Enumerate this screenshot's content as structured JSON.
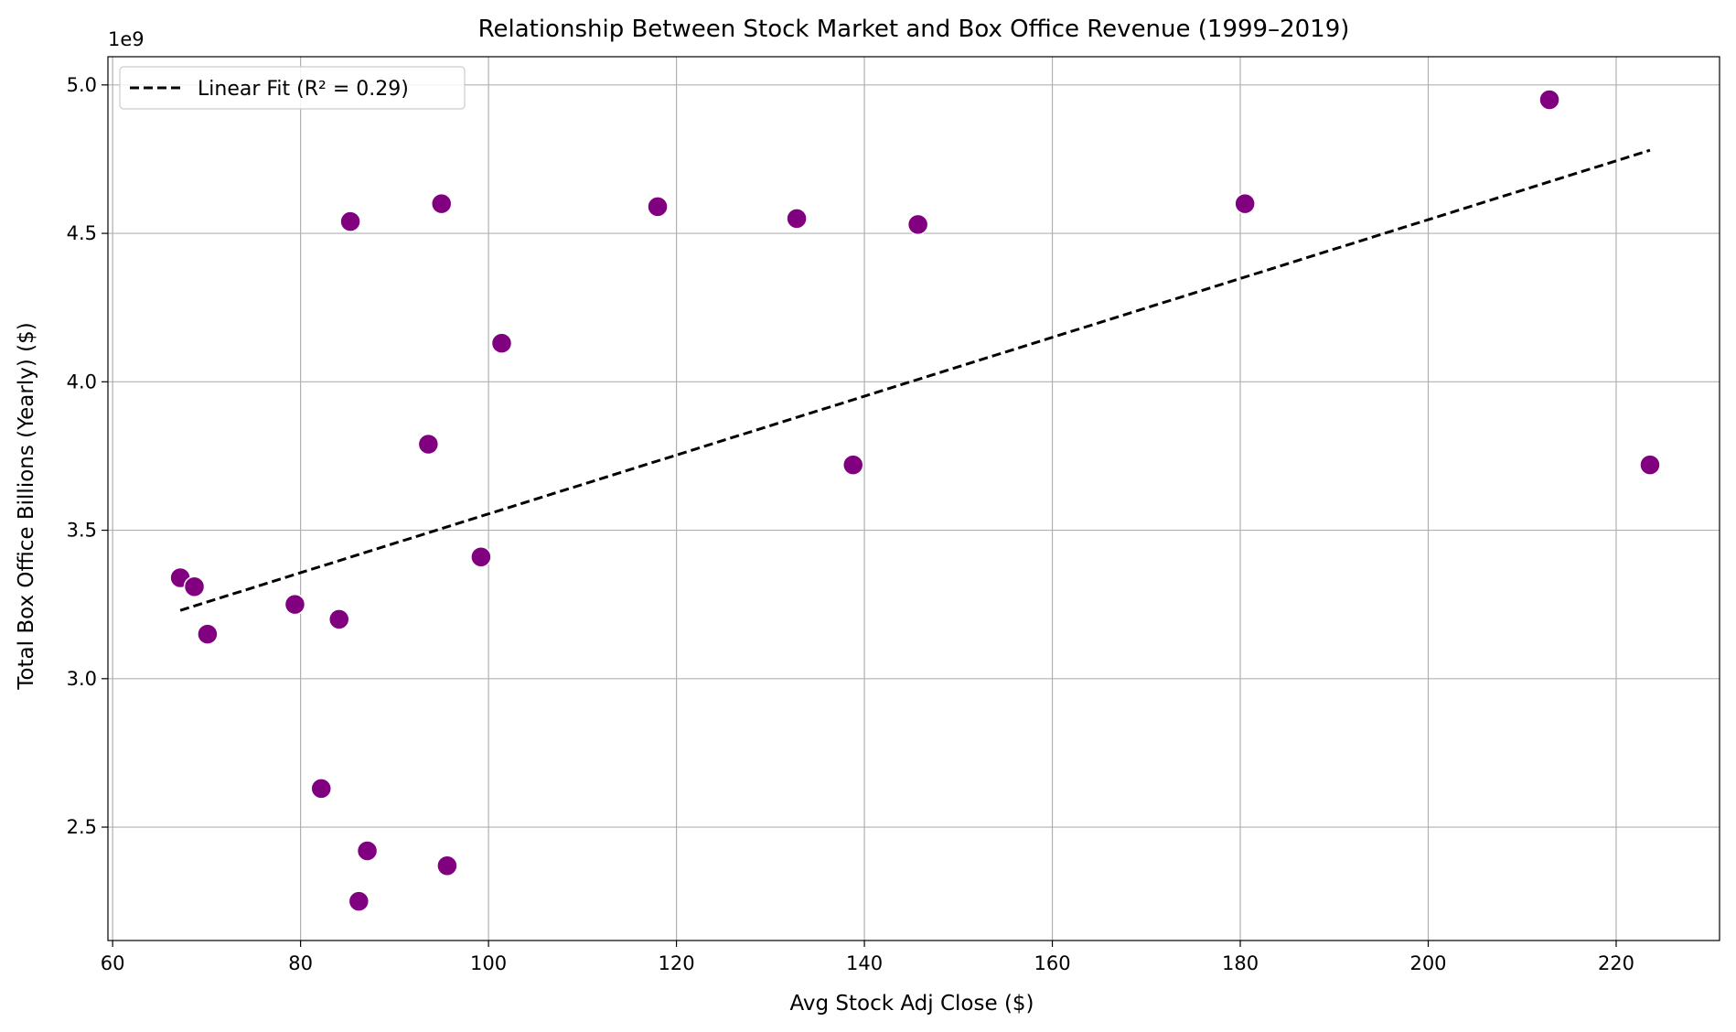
{
  "chart_data": {
    "type": "scatter",
    "title": "Relationship Between Stock Market and Box Office Revenue (1999–2019)",
    "xlabel": "Avg Stock Adj Close ($)",
    "ylabel": "Total Box Office  Billions (Yearly) ($)",
    "y_offset_label": "1e9",
    "xlim": [
      59.5,
      231.0
    ],
    "ylim": [
      2.118,
      5.095
    ],
    "x_ticks": [
      60,
      80,
      100,
      120,
      140,
      160,
      180,
      200,
      220
    ],
    "x_tick_labels": [
      "60",
      "80",
      "100",
      "120",
      "140",
      "160",
      "180",
      "200",
      "220"
    ],
    "y_ticks": [
      2.5,
      3.0,
      3.5,
      4.0,
      4.5,
      5.0
    ],
    "y_tick_labels": [
      "2.5",
      "3.0",
      "3.5",
      "4.0",
      "4.5",
      "5.0"
    ],
    "grid": true,
    "legend": {
      "location": "top-left",
      "entries": [
        "Linear Fit (R² = 0.29)"
      ]
    },
    "series": [
      {
        "kind": "scatter",
        "color": "#800080",
        "points": [
          [
            67.2,
            3.34
          ],
          [
            68.7,
            3.31
          ],
          [
            70.1,
            3.15
          ],
          [
            79.4,
            3.25
          ],
          [
            82.2,
            2.63
          ],
          [
            84.1,
            3.2
          ],
          [
            85.3,
            4.54
          ],
          [
            86.2,
            2.25
          ],
          [
            87.1,
            2.42
          ],
          [
            93.6,
            3.79
          ],
          [
            95.0,
            4.6
          ],
          [
            95.6,
            2.37
          ],
          [
            99.2,
            3.41
          ],
          [
            101.4,
            4.13
          ],
          [
            118.0,
            4.59
          ],
          [
            132.8,
            4.55
          ],
          [
            138.8,
            3.72
          ],
          [
            145.7,
            4.53
          ],
          [
            180.5,
            4.6
          ],
          [
            212.9,
            4.95
          ],
          [
            223.6,
            3.72
          ]
        ]
      },
      {
        "kind": "line",
        "name": "Linear Fit (R² = 0.29)",
        "color": "#000000",
        "style": "dashed",
        "x": [
          67.2,
          223.6
        ],
        "y": [
          3.23,
          4.78
        ]
      }
    ]
  }
}
